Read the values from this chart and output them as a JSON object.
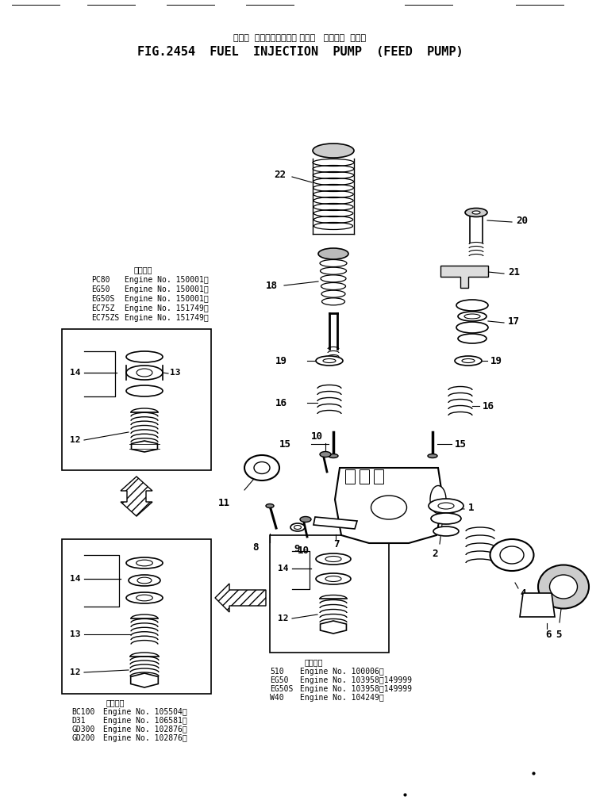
{
  "title_japanese": "フェル  インジェクション ポンプ   フィード  ポンプ",
  "title_english": "FIG.2454  FUEL  INJECTION  PUMP  (FEED  PUMP)",
  "bg_color": "#ffffff",
  "line_color": "#000000",
  "upper_table_header": "適用号等",
  "upper_table": [
    [
      "PC80",
      "Engine No. 150001～"
    ],
    [
      "EG50",
      "Engine No. 150001～"
    ],
    [
      "EG50S",
      "Engine No. 150001～"
    ],
    [
      "EC75Z",
      "Engine No. 151749～"
    ],
    [
      "EC75ZS",
      "Engine No. 151749～"
    ]
  ],
  "lower_left_table_header": "適用号等",
  "lower_left_table": [
    [
      "BC100",
      "Engine No. 105504～"
    ],
    [
      "D31",
      "Engine No. 106581～"
    ],
    [
      "GD300",
      "Engine No. 102876～"
    ],
    [
      "GD200",
      "Engine No. 102876～"
    ]
  ],
  "lower_right_table_header": "適用号等",
  "lower_right_table": [
    [
      "510",
      "Engine No. 100006～"
    ],
    [
      "EG50",
      "Engine No. 103958～149999"
    ],
    [
      "EG50S",
      "Engine No. 103958～149999"
    ],
    [
      "W40",
      "Engine No. 104249～"
    ]
  ]
}
